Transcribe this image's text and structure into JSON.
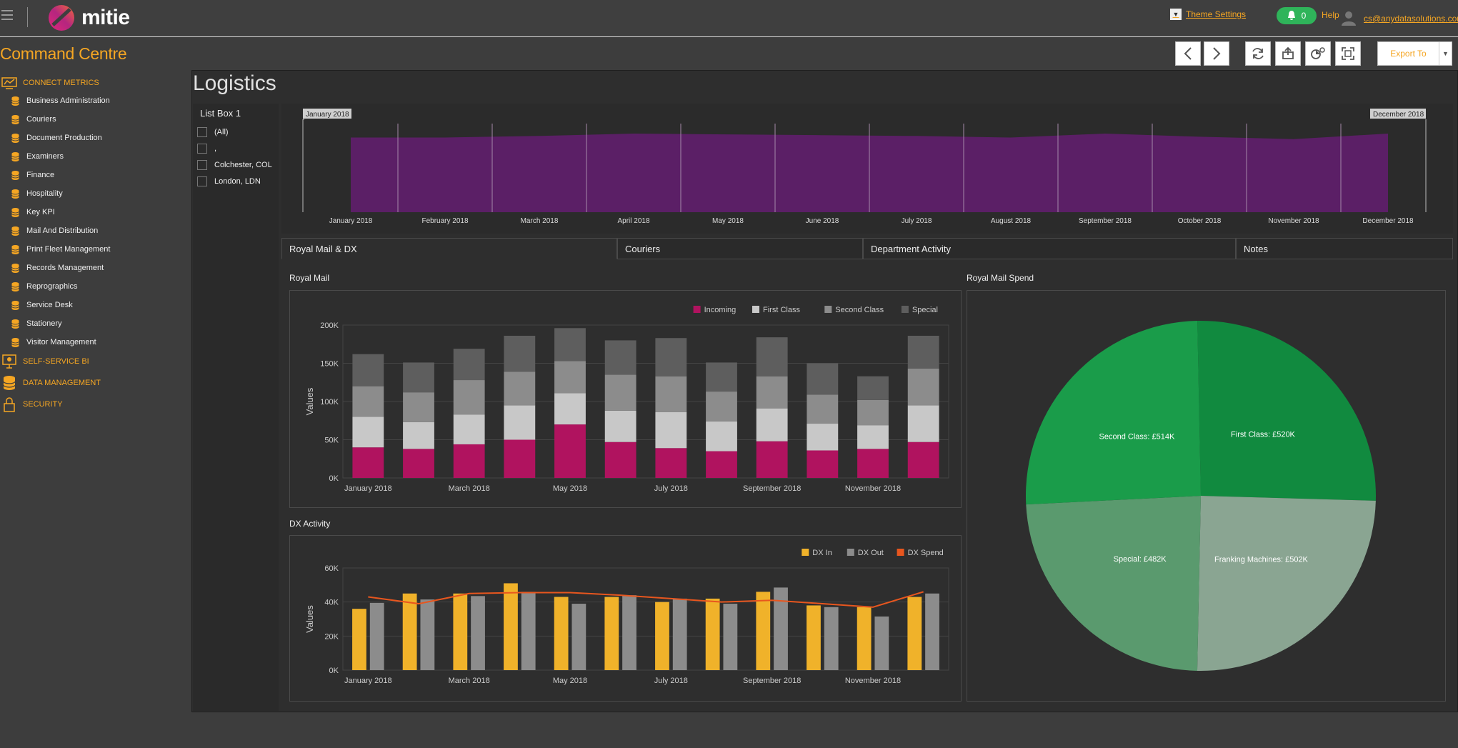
{
  "header": {
    "logo_text": "mitie",
    "theme_settings": "Theme Settings",
    "notifications_count": "0",
    "help": "Help",
    "user_email": "cs@anydatasolutions.com"
  },
  "page": {
    "title": "Command Centre",
    "export_label": "Export To"
  },
  "sidebar": {
    "connect_metrics": "CONNECT METRICS",
    "items": [
      "Business Administration",
      "Couriers",
      "Document Production",
      "Examiners",
      "Finance",
      "Hospitality",
      "Key KPI",
      "Mail And Distribution",
      "Print Fleet Management",
      "Records Management",
      "Reprographics",
      "Service Desk",
      "Stationery",
      "Visitor Management"
    ],
    "self_service": "SELF-SERVICE BI",
    "data_management": "DATA MANAGEMENT",
    "security": "SECURITY"
  },
  "dashboard": {
    "title": "Logistics",
    "listbox": {
      "title": "List Box 1",
      "items": [
        "(All)",
        ",",
        "Colchester, COL",
        "London, LDN"
      ]
    },
    "timeline": {
      "start_label": "January 2018",
      "end_label": "December 2018",
      "months": [
        "January 2018",
        "February 2018",
        "March 2018",
        "April 2018",
        "May 2018",
        "June 2018",
        "July 2018",
        "August 2018",
        "September 2018",
        "October 2018",
        "November 2018",
        "December 2018"
      ],
      "values": [
        0.95,
        0.95,
        0.97,
        1.0,
        0.99,
        0.98,
        0.97,
        0.95,
        1.0,
        0.96,
        0.93,
        1.0
      ],
      "color": "#5b1f66"
    },
    "tabs": [
      "Royal Mail & DX",
      "Couriers",
      "Department Activity",
      "Notes"
    ],
    "royal_mail_title": "Royal Mail",
    "dx_title": "DX Activity",
    "spend_title": "Royal Mail Spend"
  },
  "chart_data": [
    {
      "type": "bar",
      "stacked": true,
      "title": "Royal Mail",
      "ylabel": "Values",
      "ylim": [
        0,
        200000
      ],
      "yticks": [
        "0K",
        "50K",
        "100K",
        "150K",
        "200K"
      ],
      "categories": [
        "January 2018",
        "February 2018",
        "March 2018",
        "April 2018",
        "May 2018",
        "June 2018",
        "July 2018",
        "August 2018",
        "September 2018",
        "October 2018",
        "November 2018",
        "December 2018"
      ],
      "xtick_labels": [
        "January 2018",
        "",
        "March 2018",
        "",
        "May 2018",
        "",
        "July 2018",
        "",
        "September 2018",
        "",
        "November 2018",
        ""
      ],
      "legend": "top-right",
      "series": [
        {
          "name": "Incoming",
          "color": "#b0135f",
          "values": [
            40000,
            38000,
            44000,
            50000,
            70000,
            47000,
            39000,
            35000,
            48000,
            36000,
            38000,
            47000
          ]
        },
        {
          "name": "First Class",
          "color": "#c8c8c8",
          "values": [
            40000,
            35000,
            39000,
            45000,
            41000,
            41000,
            47000,
            39000,
            43000,
            35000,
            31000,
            48000
          ]
        },
        {
          "name": "Second Class",
          "color": "#8c8c8c",
          "values": [
            40000,
            39000,
            45000,
            44000,
            42000,
            47000,
            47000,
            39000,
            42000,
            38000,
            33000,
            48000
          ]
        },
        {
          "name": "Special",
          "color": "#5e5e5e",
          "values": [
            42000,
            39000,
            41000,
            47000,
            43000,
            45000,
            50000,
            38000,
            51000,
            41000,
            31000,
            43000
          ]
        }
      ]
    },
    {
      "type": "bar",
      "title": "DX Activity",
      "ylabel": "Values",
      "ylim": [
        0,
        60000
      ],
      "yticks": [
        "0K",
        "20K",
        "40K",
        "60K"
      ],
      "categories": [
        "January 2018",
        "February 2018",
        "March 2018",
        "April 2018",
        "May 2018",
        "June 2018",
        "July 2018",
        "August 2018",
        "September 2018",
        "October 2018",
        "November 2018",
        "December 2018"
      ],
      "xtick_labels": [
        "January 2018",
        "",
        "March 2018",
        "",
        "May 2018",
        "",
        "July 2018",
        "",
        "September 2018",
        "",
        "November 2018",
        ""
      ],
      "legend": "top-right",
      "series": [
        {
          "name": "DX In",
          "color": "#f0b22a",
          "values": [
            36000,
            45000,
            45000,
            51000,
            43000,
            43000,
            40000,
            42000,
            46000,
            38000,
            37000,
            43000
          ]
        },
        {
          "name": "DX Out",
          "color": "#8c8c8c",
          "values": [
            39500,
            41500,
            43500,
            46000,
            39000,
            44000,
            42000,
            39000,
            48500,
            37000,
            31500,
            45000
          ]
        },
        {
          "name": "DX Spend",
          "color": "#e8561e",
          "type": "line",
          "values": [
            43000,
            39000,
            45000,
            45500,
            45500,
            44000,
            42000,
            40000,
            41000,
            39000,
            37000,
            46000
          ]
        }
      ]
    },
    {
      "type": "pie",
      "title": "Royal Mail Spend",
      "labels": [
        "First Class: £520K",
        "Franking Machines: £502K",
        "Special: £482K",
        "Second Class: £514K"
      ],
      "values": [
        520,
        502,
        482,
        514
      ],
      "colors": [
        "#118a3f",
        "#8aa592",
        "#5a9a6e",
        "#1a9c4a"
      ]
    }
  ]
}
